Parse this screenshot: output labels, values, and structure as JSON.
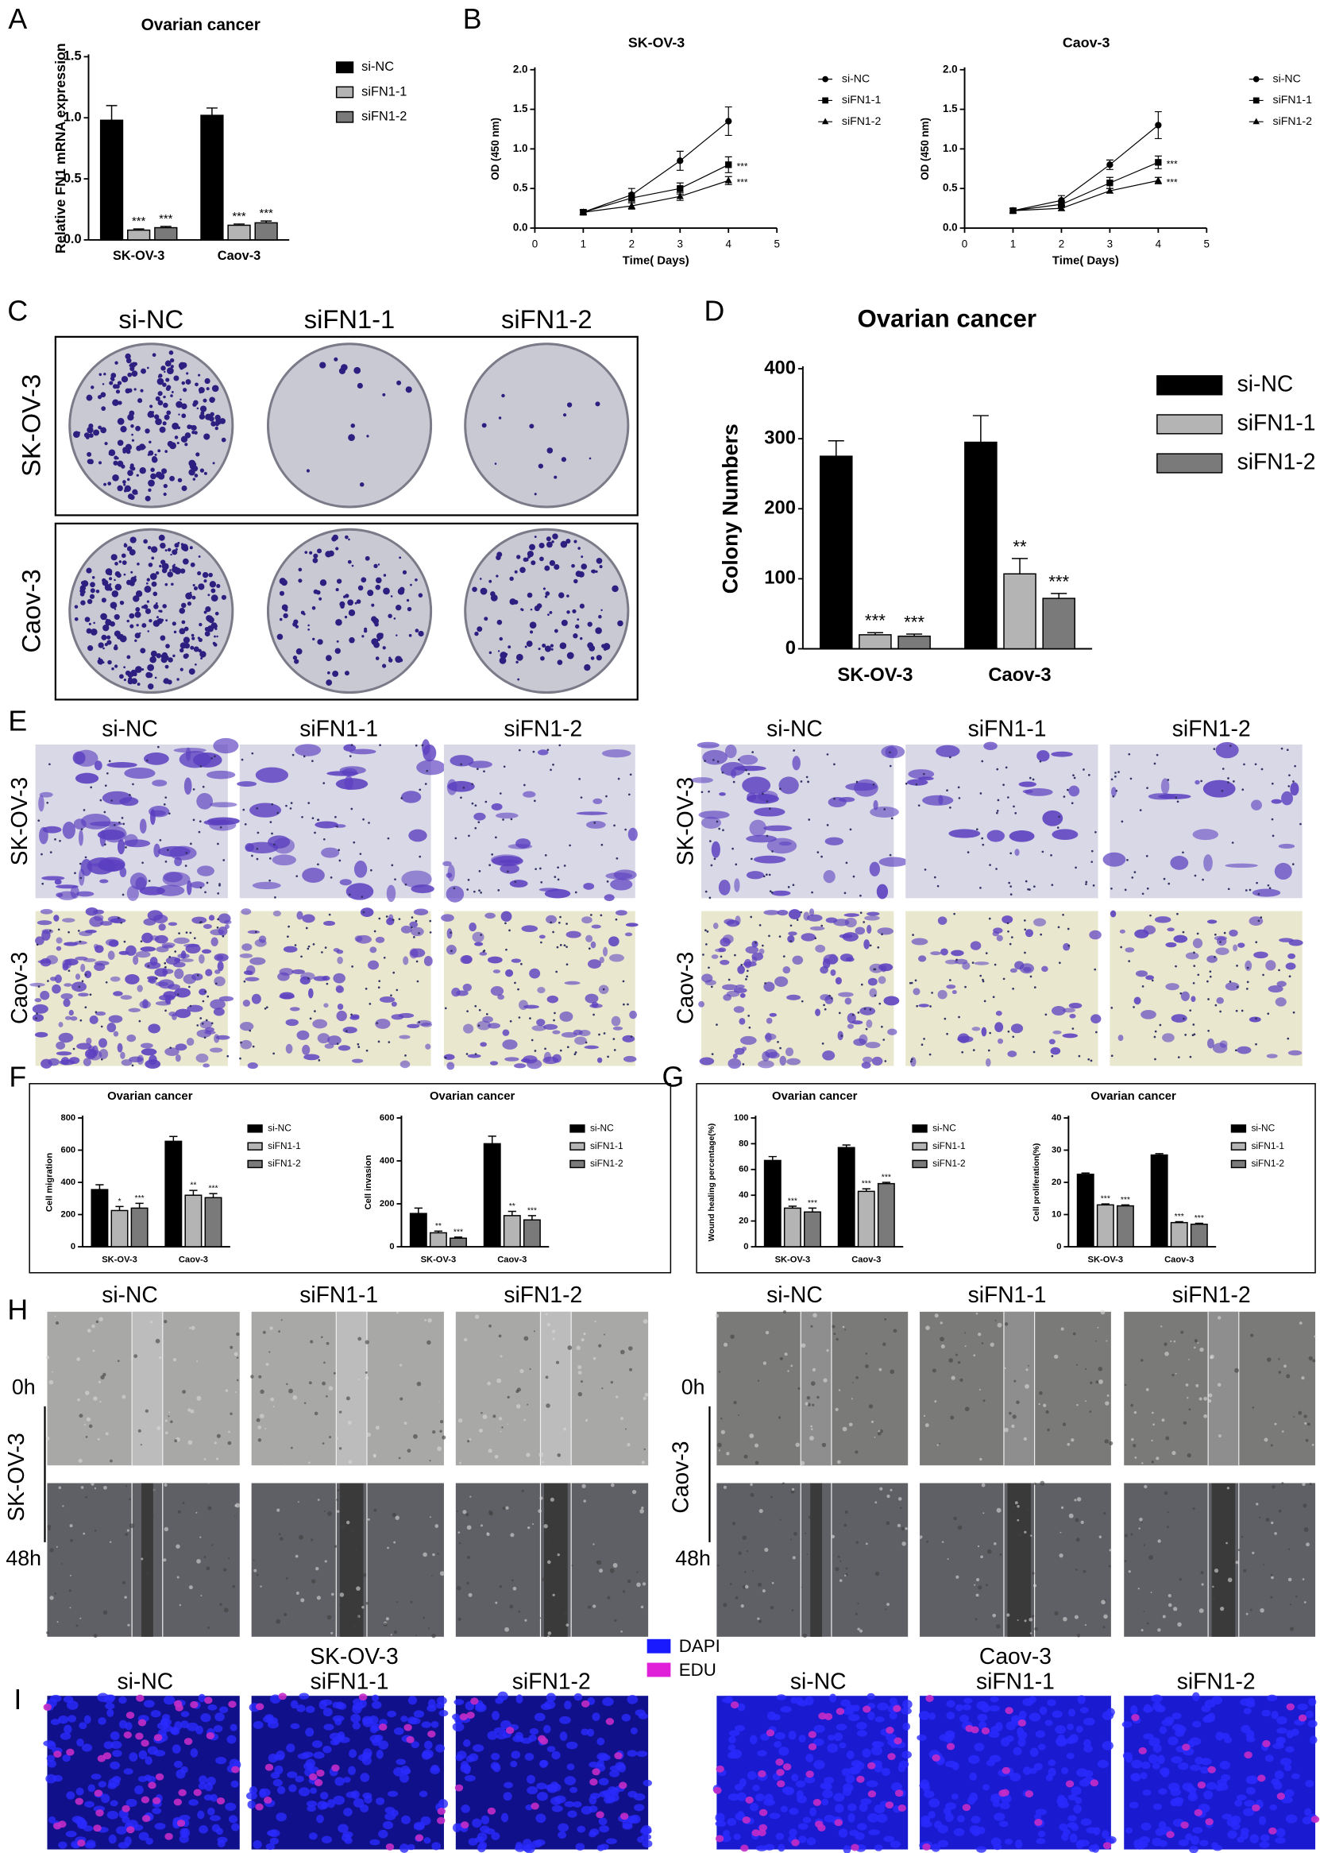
{
  "figure_labels": [
    "A",
    "B",
    "C",
    "D",
    "E",
    "F",
    "G",
    "H",
    "I"
  ],
  "chart_data": [
    {
      "type": "bar",
      "title": "Ovarian cancer",
      "y_label": "Relative FN1 mRNA expression",
      "categories": [
        "SK-OV-3",
        "Caov-3"
      ],
      "series": [
        {
          "name": "si-NC",
          "color": "#000000",
          "values": [
            0.98,
            1.02
          ],
          "errors": [
            0.12,
            0.06
          ]
        },
        {
          "name": "siFN1-1",
          "color": "#b4b4b4",
          "values": [
            0.08,
            0.12
          ],
          "errors": [
            0.01,
            0.01
          ],
          "annotations": [
            "***",
            "***"
          ]
        },
        {
          "name": "siFN1-2",
          "color": "#7a7a7a",
          "values": [
            0.1,
            0.14
          ],
          "errors": [
            0.01,
            0.015
          ],
          "annotations": [
            "***",
            "***"
          ]
        }
      ],
      "ylim": [
        0,
        1.5
      ],
      "yticks": [
        {
          "value": 0,
          "label": "0.0"
        },
        0.5,
        {
          "value": 1,
          "label": "1.0"
        },
        1.5
      ],
      "legend": "right"
    },
    {
      "type": "line",
      "title": "SK-OV-3",
      "x_label": "Time( Days)",
      "y_label": "OD (450 nm)",
      "x": [
        1,
        2,
        3,
        4
      ],
      "series": [
        {
          "name": "si-NC",
          "color": "#000000",
          "marker": "circle",
          "values": [
            0.2,
            0.42,
            0.85,
            1.35
          ],
          "errors": [
            0.03,
            0.08,
            0.12,
            0.18
          ]
        },
        {
          "name": "siFN1-1",
          "color": "#000000",
          "marker": "square",
          "values": [
            0.2,
            0.38,
            0.5,
            0.8
          ],
          "errors": [
            0.03,
            0.06,
            0.07,
            0.1
          ],
          "end_label": "***"
        },
        {
          "name": "siFN1-2",
          "color": "#000000",
          "marker": "triangle",
          "values": [
            0.2,
            0.28,
            0.4,
            0.6
          ],
          "errors": [
            0.03,
            0.04,
            0.05,
            0.05
          ],
          "end_label": "***"
        }
      ],
      "xlim": [
        0,
        5
      ],
      "xticks": [
        0,
        1,
        2,
        3,
        4,
        5
      ],
      "ylim": [
        0,
        2
      ],
      "yticks": [
        {
          "value": 0,
          "label": "0.0"
        },
        0.5,
        {
          "value": 1,
          "label": "1.0"
        },
        1.5,
        {
          "value": 2,
          "label": "2.0"
        }
      ],
      "legend": "right"
    },
    {
      "type": "line",
      "title": "Caov-3",
      "x_label": "Time( Days)",
      "y_label": "OD (450 nm)",
      "x": [
        1,
        2,
        3,
        4
      ],
      "series": [
        {
          "name": "si-NC",
          "color": "#000000",
          "marker": "circle",
          "values": [
            0.22,
            0.35,
            0.8,
            1.3
          ],
          "errors": [
            0.03,
            0.06,
            0.06,
            0.17
          ]
        },
        {
          "name": "siFN1-1",
          "color": "#000000",
          "marker": "square",
          "values": [
            0.22,
            0.3,
            0.57,
            0.83
          ],
          "errors": [
            0.03,
            0.04,
            0.07,
            0.08
          ],
          "end_label": "***"
        },
        {
          "name": "siFN1-2",
          "color": "#000000",
          "marker": "triangle",
          "values": [
            0.22,
            0.25,
            0.47,
            0.6
          ],
          "errors": [
            0.03,
            0.03,
            0.03,
            0.04
          ],
          "end_label": "***"
        }
      ],
      "xlim": [
        0,
        5
      ],
      "xticks": [
        0,
        1,
        2,
        3,
        4,
        5
      ],
      "ylim": [
        0,
        2
      ],
      "yticks": [
        {
          "value": 0,
          "label": "0.0"
        },
        0.5,
        {
          "value": 1,
          "label": "1.0"
        },
        1.5,
        {
          "value": 2,
          "label": "2.0"
        }
      ],
      "legend": "right"
    },
    {
      "type": "bar",
      "title": "Ovarian cancer",
      "y_label": "Colony Numbers",
      "categories": [
        "SK-OV-3",
        "Caov-3"
      ],
      "series": [
        {
          "name": "si-NC",
          "color": "#000000",
          "values": [
            275,
            295
          ],
          "errors": [
            22,
            38
          ]
        },
        {
          "name": "siFN1-1",
          "color": "#b4b4b4",
          "values": [
            20,
            107
          ],
          "errors": [
            3,
            22
          ],
          "annotations": [
            "***",
            "**"
          ]
        },
        {
          "name": "siFN1-2",
          "color": "#7a7a7a",
          "values": [
            18,
            72
          ],
          "errors": [
            3,
            7
          ],
          "annotations": [
            "***",
            "***"
          ]
        }
      ],
      "ylim": [
        0,
        400
      ],
      "yticks": [
        0,
        100,
        200,
        300,
        400
      ],
      "legend": "right"
    },
    {
      "type": "bar",
      "title": "Ovarian cancer",
      "y_label": "Cell migration",
      "categories": [
        "SK-OV-3",
        "Caov-3"
      ],
      "series": [
        {
          "name": "si-NC",
          "color": "#000000",
          "values": [
            355,
            655
          ],
          "errors": [
            30,
            30
          ]
        },
        {
          "name": "siFN1-1",
          "color": "#b4b4b4",
          "values": [
            225,
            320
          ],
          "errors": [
            25,
            30
          ],
          "annotations": [
            "*",
            "**"
          ]
        },
        {
          "name": "siFN1-2",
          "color": "#7a7a7a",
          "values": [
            240,
            305
          ],
          "errors": [
            30,
            25
          ],
          "annotations": [
            "***",
            "***"
          ]
        }
      ],
      "ylim": [
        0,
        800
      ],
      "yticks": [
        0,
        200,
        400,
        600,
        800
      ],
      "legend": "right"
    },
    {
      "type": "bar",
      "title": "Ovarian cancer",
      "y_label": "Cell invasion",
      "categories": [
        "SK-OV-3",
        "Caov-3"
      ],
      "series": [
        {
          "name": "si-NC",
          "color": "#000000",
          "values": [
            155,
            480
          ],
          "errors": [
            25,
            35
          ]
        },
        {
          "name": "siFN1-1",
          "color": "#b4b4b4",
          "values": [
            65,
            145
          ],
          "errors": [
            8,
            20
          ],
          "annotations": [
            "**",
            "**"
          ]
        },
        {
          "name": "siFN1-2",
          "color": "#7a7a7a",
          "values": [
            40,
            125
          ],
          "errors": [
            5,
            20
          ],
          "annotations": [
            "***",
            "***"
          ]
        }
      ],
      "ylim": [
        0,
        600
      ],
      "yticks": [
        0,
        200,
        400,
        600
      ],
      "legend": "right"
    },
    {
      "type": "bar",
      "title": "Ovarian cancer",
      "y_label": "Wound healing percentage(%)",
      "categories": [
        "SK-OV-3",
        "Caov-3"
      ],
      "series": [
        {
          "name": "si-NC",
          "color": "#000000",
          "values": [
            67,
            77
          ],
          "errors": [
            3,
            2
          ]
        },
        {
          "name": "siFN1-1",
          "color": "#b4b4b4",
          "values": [
            30,
            43
          ],
          "errors": [
            1.5,
            2
          ]
        },
        {
          "name": "siFN1-2",
          "color": "#7a7a7a",
          "values": [
            27,
            49
          ],
          "errors": [
            3,
            1
          ]
        }
      ],
      "annotation_rows": [
        [
          "***",
          "***"
        ],
        [
          "***",
          "***"
        ]
      ],
      "ylim": [
        0,
        100
      ],
      "yticks": [
        0,
        20,
        40,
        60,
        80,
        100
      ],
      "legend": "right"
    },
    {
      "type": "bar",
      "title": "Ovarian cancer",
      "y_label": "Cell proliferation(%)",
      "categories": [
        "SK-OV-3",
        "Caov-3"
      ],
      "series": [
        {
          "name": "si-NC",
          "color": "#000000",
          "values": [
            22.5,
            28.5
          ],
          "errors": [
            0.4,
            0.4
          ]
        },
        {
          "name": "siFN1-1",
          "color": "#b4b4b4",
          "values": [
            13,
            7.5
          ],
          "errors": [
            0.3,
            0.3
          ],
          "annotations": [
            "***",
            "***"
          ]
        },
        {
          "name": "siFN1-2",
          "color": "#7a7a7a",
          "values": [
            12.7,
            7
          ],
          "errors": [
            0.3,
            0.3
          ],
          "annotations": [
            "***",
            "***"
          ]
        }
      ],
      "ylim": [
        0,
        40
      ],
      "yticks": [
        0,
        10,
        20,
        30,
        40
      ],
      "legend": "right"
    }
  ],
  "colony_assay": {
    "columns": [
      "si-NC",
      "siFN1-1",
      "siFN1-2"
    ],
    "rows": [
      "SK-OV-3",
      "Caov-3"
    ]
  },
  "transwell_assay": [
    {
      "columns": [
        "si-NC",
        "siFN1-1",
        "siFN1-2"
      ],
      "rows": [
        "SK-OV-3",
        "Caov-3"
      ]
    },
    {
      "columns": [
        "si-NC",
        "siFN1-1",
        "siFN1-2"
      ],
      "rows": [
        "SK-OV-3",
        "Caov-3"
      ]
    }
  ],
  "wound_healing": [
    {
      "columns": [
        "si-NC",
        "siFN1-1",
        "siFN1-2"
      ],
      "cell_line": "SK-OV-3",
      "timepoints": [
        "0h",
        "48h"
      ]
    },
    {
      "columns": [
        "si-NC",
        "siFN1-1",
        "siFN1-2"
      ],
      "cell_line": "Caov-3",
      "timepoints": [
        "0h",
        "48h"
      ]
    }
  ],
  "edu_assay": {
    "legend": [
      {
        "name": "DAPI",
        "color": "#1a1aff"
      },
      {
        "name": "EDU",
        "color": "#e020d8"
      }
    ],
    "groups": [
      {
        "cell_line": "SK-OV-3",
        "columns": [
          "si-NC",
          "siFN1-1",
          "siFN1-2"
        ]
      },
      {
        "cell_line": "Caov-3",
        "columns": [
          "si-NC",
          "siFN1-1",
          "siFN1-2"
        ]
      }
    ]
  }
}
